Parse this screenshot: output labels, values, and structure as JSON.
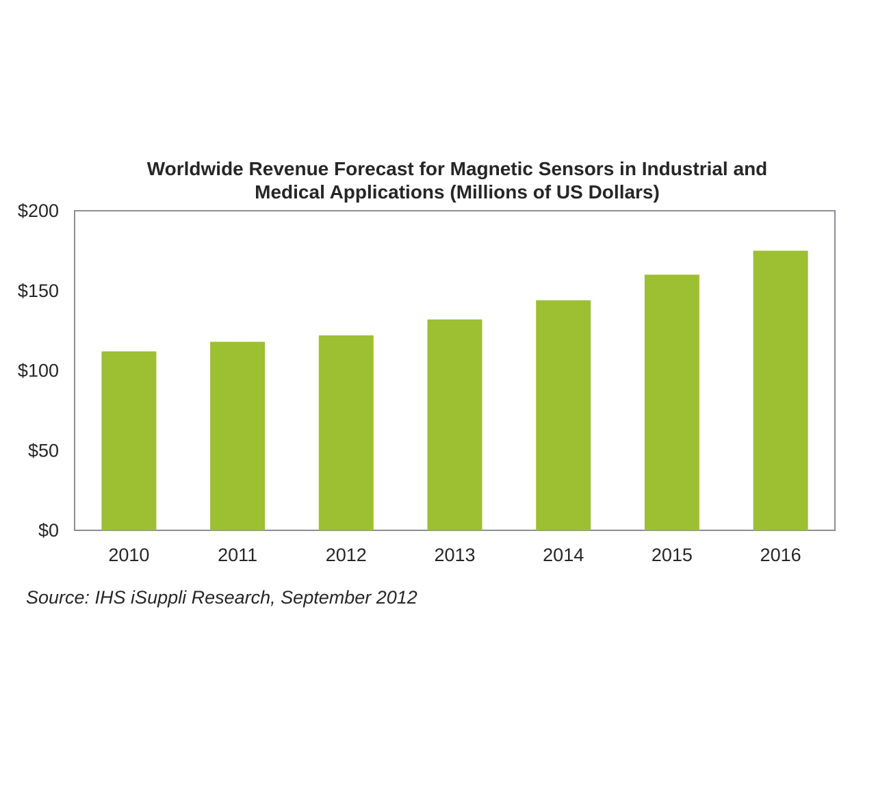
{
  "chart_data": {
    "type": "bar",
    "title_lines": [
      "Worldwide Revenue Forecast for Magnetic Sensors in Industrial and",
      "Medical Applications (Millions of US Dollars)"
    ],
    "categories": [
      "2010",
      "2011",
      "2012",
      "2013",
      "2014",
      "2015",
      "2016"
    ],
    "values": [
      112,
      118,
      122,
      132,
      144,
      160,
      175
    ],
    "ylim": [
      0,
      200
    ],
    "y_ticks": [
      0,
      50,
      100,
      150,
      200
    ],
    "y_tick_labels": [
      "$0",
      "$50",
      "$100",
      "$150",
      "$200"
    ],
    "xlabel": "",
    "ylabel": "",
    "grid": false,
    "legend": "none",
    "bar_color": "#9dbf32",
    "source": "Source: IHS iSuppli Research, September 2012"
  }
}
